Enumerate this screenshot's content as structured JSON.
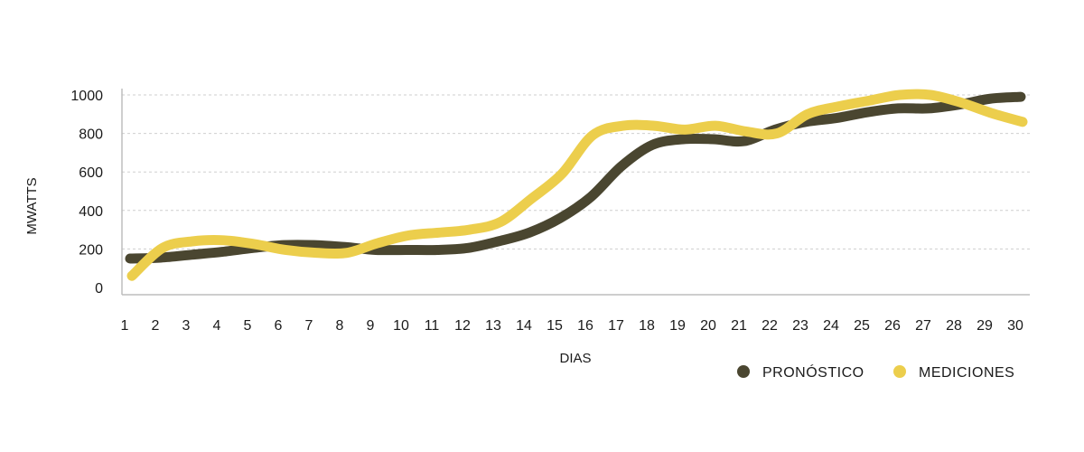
{
  "chart_data": {
    "type": "line",
    "title": "",
    "xlabel": "DIAS",
    "ylabel": "MWATTS",
    "ylim": [
      0,
      1000
    ],
    "yticks": [
      0,
      200,
      400,
      600,
      800,
      1000
    ],
    "grid": true,
    "legend_position": "bottom-right",
    "categories": [
      1,
      2,
      3,
      4,
      5,
      6,
      7,
      8,
      9,
      10,
      11,
      12,
      13,
      14,
      15,
      16,
      17,
      18,
      19,
      20,
      21,
      22,
      23,
      24,
      25,
      26,
      27,
      28,
      29,
      30
    ],
    "series": [
      {
        "name": "PRONÓSTICO",
        "color": "#4a4630",
        "values": [
          150,
          155,
          170,
          185,
          205,
          220,
          220,
          210,
          195,
          195,
          195,
          205,
          240,
          285,
          360,
          470,
          630,
          740,
          770,
          770,
          760,
          820,
          860,
          880,
          910,
          930,
          930,
          950,
          980,
          990
        ]
      },
      {
        "name": "MEDICIONES",
        "color": "#ecce4c",
        "values": [
          60,
          205,
          240,
          245,
          225,
          195,
          180,
          180,
          230,
          270,
          285,
          300,
          340,
          460,
          590,
          790,
          840,
          840,
          820,
          840,
          810,
          800,
          900,
          940,
          970,
          1000,
          1000,
          960,
          905,
          860
        ]
      }
    ]
  }
}
